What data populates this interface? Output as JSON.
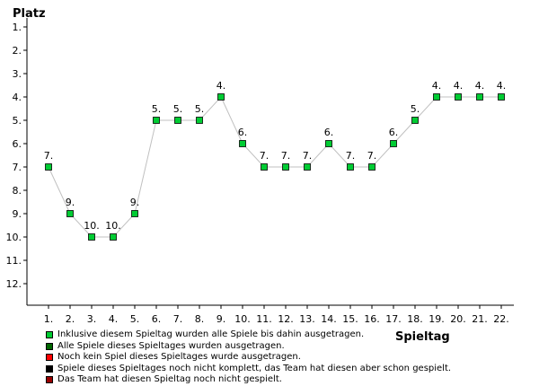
{
  "chart_data": {
    "type": "line",
    "xlabel": "Spieltag",
    "ylabel": "Platz",
    "x": [
      1,
      2,
      3,
      4,
      5,
      6,
      7,
      8,
      9,
      10,
      11,
      12,
      13,
      14,
      15,
      16,
      17,
      18,
      19,
      20,
      21,
      22
    ],
    "x_tick_labels": [
      "1.",
      "2.",
      "3.",
      "4.",
      "5.",
      "6.",
      "7.",
      "8.",
      "9.",
      "10.",
      "11.",
      "12.",
      "13.",
      "14.",
      "15.",
      "16.",
      "17.",
      "18.",
      "19.",
      "20.",
      "21.",
      "22."
    ],
    "y_tick_labels": [
      "1.",
      "2.",
      "3.",
      "4.",
      "5.",
      "6.",
      "7.",
      "8.",
      "9.",
      "10.",
      "11.",
      "12."
    ],
    "ylim": [
      1,
      12
    ],
    "y_inverted": true,
    "grid": false,
    "series": [
      {
        "values": [
          7,
          9,
          10,
          10,
          9,
          5,
          5,
          5,
          4,
          6,
          7,
          7,
          7,
          6,
          7,
          7,
          6,
          5,
          4,
          4,
          4,
          4
        ],
        "labels": [
          "7.",
          "9.",
          "10.",
          "10.",
          "9.",
          "5.",
          "5.",
          "5.",
          "4.",
          "6.",
          "7.",
          "7.",
          "7.",
          "6.",
          "7.",
          "7.",
          "6.",
          "5.",
          "4.",
          "4.",
          "4.",
          "4."
        ],
        "line_color": "#c0c0c0",
        "marker_color": "#00cc33"
      }
    ]
  },
  "legend": {
    "items": [
      {
        "label": "Inklusive diesem Spieltag wurden alle Spiele bis dahin ausgetragen.",
        "color": "#00cc33"
      },
      {
        "label": "Alle Spiele dieses Spieltages wurden ausgetragen.",
        "color": "#006600"
      },
      {
        "label": "Noch kein Spiel dieses Spieltages wurde ausgetragen.",
        "color": "#ff0000"
      },
      {
        "label": "Spiele dieses Spieltages noch nicht komplett, das Team hat diesen aber schon gespielt.",
        "color": "#000000"
      },
      {
        "label": "Das Team hat diesen Spieltag noch nicht gespielt.",
        "color": "#990000"
      }
    ]
  }
}
